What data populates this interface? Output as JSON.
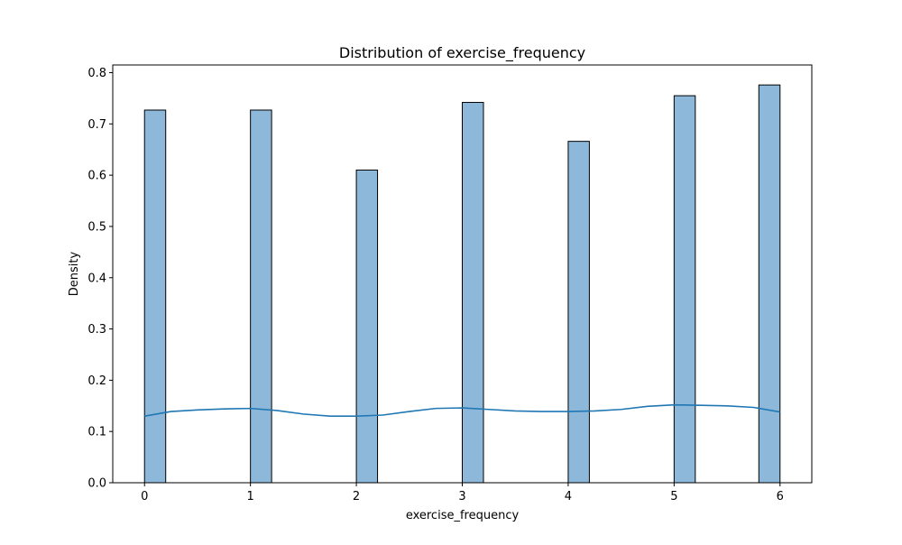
{
  "chart_data": {
    "type": "bar",
    "title": "Distribution of exercise_frequency",
    "xlabel": "exercise_frequency",
    "ylabel": "Density",
    "xlim": [
      -0.3,
      6.3
    ],
    "ylim": [
      0,
      0.815
    ],
    "xticks": [
      0,
      1,
      2,
      3,
      4,
      5,
      6
    ],
    "yticks": [
      0.0,
      0.1,
      0.2,
      0.3,
      0.4,
      0.5,
      0.6,
      0.7,
      0.8
    ],
    "bar_width": 0.2,
    "bars": [
      {
        "x": 0.0,
        "value": 0.727
      },
      {
        "x": 1.0,
        "value": 0.727
      },
      {
        "x": 2.0,
        "value": 0.61
      },
      {
        "x": 3.0,
        "value": 0.742
      },
      {
        "x": 4.0,
        "value": 0.666
      },
      {
        "x": 5.0,
        "value": 0.755
      },
      {
        "x": 5.8,
        "value": 0.776
      }
    ],
    "kde": {
      "x": [
        0,
        0.25,
        0.5,
        0.75,
        1.0,
        1.25,
        1.5,
        1.75,
        2.0,
        2.25,
        2.5,
        2.75,
        3.0,
        3.25,
        3.5,
        3.75,
        4.0,
        4.25,
        4.5,
        4.75,
        5.0,
        5.25,
        5.5,
        5.75,
        6.0
      ],
      "y": [
        0.13,
        0.139,
        0.142,
        0.144,
        0.145,
        0.141,
        0.134,
        0.13,
        0.13,
        0.132,
        0.139,
        0.145,
        0.146,
        0.143,
        0.14,
        0.139,
        0.139,
        0.14,
        0.143,
        0.149,
        0.152,
        0.151,
        0.15,
        0.147,
        0.138
      ]
    },
    "colors": {
      "bar_fill": "#8db8da",
      "bar_edge": "#000000",
      "kde_line": "#1f77b4",
      "axes": "#000000"
    },
    "grid": false,
    "legend": "none"
  }
}
